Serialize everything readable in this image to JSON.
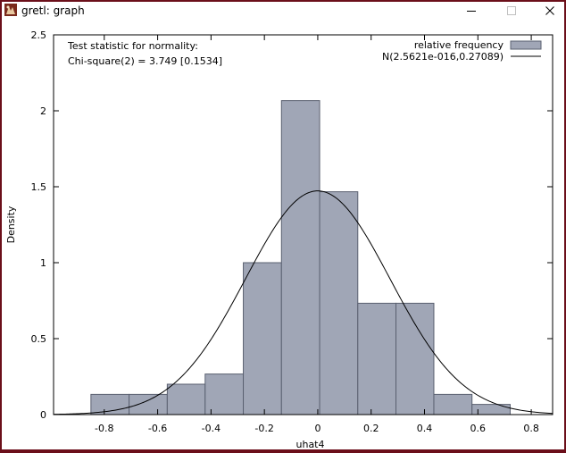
{
  "window": {
    "title": "gretl: graph",
    "icons": {
      "app": "gretl-logo-icon",
      "minimize": "minimize-icon",
      "maximize": "maximize-icon",
      "close": "close-icon"
    }
  },
  "chart_data": {
    "type": "bar",
    "title": "",
    "xlabel": "uhat4",
    "ylabel": "Density",
    "xlim": [
      -0.99,
      0.88
    ],
    "ylim": [
      0,
      2.5
    ],
    "xticks": [
      "-0.8",
      "-0.6",
      "-0.4",
      "-0.2",
      "0",
      "0.2",
      "0.4",
      "0.6",
      "0.8"
    ],
    "xtick_values": [
      -0.8,
      -0.6,
      -0.4,
      -0.2,
      0,
      0.2,
      0.4,
      0.6,
      0.8
    ],
    "yticks": [
      "0",
      "0.5",
      "1",
      "1.5",
      "2",
      "2.5"
    ],
    "ytick_values": [
      0,
      0.5,
      1,
      1.5,
      2,
      2.5
    ],
    "grid": false,
    "legend_position": "top-right",
    "annotation": [
      "Test statistic for normality:",
      "Chi-square(2) = 3.749 [0.1534]"
    ],
    "series": [
      {
        "name": "relative frequency",
        "kind": "histogram",
        "color": "#a0a6b6",
        "edge_color": "#5a6070",
        "bins": [
          {
            "from": -0.85,
            "to": -0.707,
            "value": 0.133
          },
          {
            "from": -0.707,
            "to": -0.564,
            "value": 0.133
          },
          {
            "from": -0.564,
            "to": -0.422,
            "value": 0.2
          },
          {
            "from": -0.422,
            "to": -0.279,
            "value": 0.267
          },
          {
            "from": -0.279,
            "to": -0.136,
            "value": 1.0
          },
          {
            "from": -0.136,
            "to": 0.007,
            "value": 2.067
          },
          {
            "from": 0.007,
            "to": 0.15,
            "value": 1.467
          },
          {
            "from": 0.15,
            "to": 0.293,
            "value": 0.733
          },
          {
            "from": 0.293,
            "to": 0.435,
            "value": 0.733
          },
          {
            "from": 0.435,
            "to": 0.578,
            "value": 0.133
          },
          {
            "from": 0.578,
            "to": 0.721,
            "value": 0.067
          }
        ]
      },
      {
        "name": "N(2.5621e-016,0.27089)",
        "kind": "normal-curve",
        "mean": 0,
        "sd": 0.27089,
        "color": "#000000"
      }
    ]
  }
}
